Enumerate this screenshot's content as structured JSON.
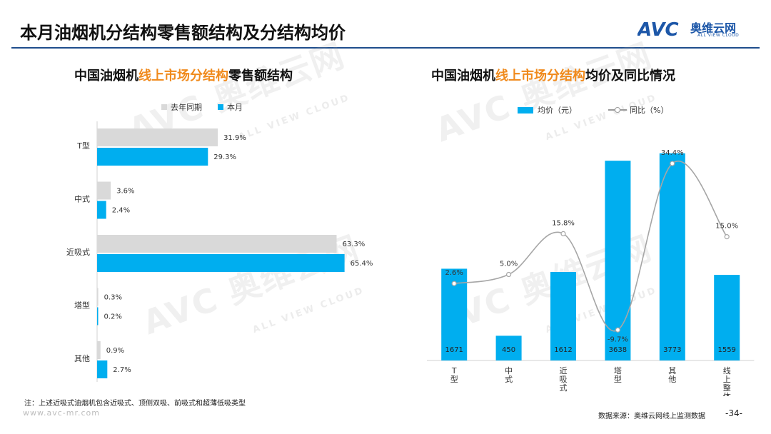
{
  "header": {
    "title": "本月油烟机分结构零售额结构及分结构均价",
    "logo_cn": "奥维云网",
    "logo_en": "ALL VIEW CLOUD"
  },
  "watermark": {
    "brand": "AVC 奥维云网",
    "sub": "ALL VIEW CLOUD"
  },
  "colors": {
    "current": "#00aeef",
    "last_year": "#d9d9d9",
    "line": "#a6a6a6",
    "highlight": "#f08a1c",
    "rule": "#1f4e8c"
  },
  "left_chart": {
    "title_prefix": "中国油烟机",
    "title_highlight": "线上市场分结构",
    "title_suffix": "零售额结构",
    "legend": {
      "last_year": "去年同期",
      "current": "本月"
    }
  },
  "right_chart": {
    "title_prefix": "中国油烟机",
    "title_highlight": "线上市场分结构",
    "title_suffix": "均价及同比情况",
    "legend": {
      "bar": "均价（元）",
      "line": "同比（%）"
    }
  },
  "chart_data": [
    {
      "type": "bar",
      "orientation": "horizontal",
      "title": "中国油烟机线上市场分结构零售额结构",
      "categories": [
        "T型",
        "中式",
        "近吸式",
        "塔型",
        "其他"
      ],
      "series": [
        {
          "name": "去年同期",
          "values": [
            31.9,
            3.6,
            63.3,
            0.3,
            0.9
          ],
          "labels": [
            "31.9%",
            "3.6%",
            "63.3%",
            "0.3%",
            "0.9%"
          ]
        },
        {
          "name": "本月",
          "values": [
            29.3,
            2.4,
            65.4,
            0.2,
            2.7
          ],
          "labels": [
            "29.3%",
            "2.4%",
            "65.4%",
            "0.2%",
            "2.7%"
          ]
        }
      ],
      "xlim": [
        0,
        70
      ],
      "grid": false,
      "legend_position": "top"
    },
    {
      "type": "bar",
      "secondary_type": "line",
      "title": "中国油烟机线上市场分结构均价及同比情况",
      "categories": [
        "T型",
        "中式",
        "近吸式",
        "塔型",
        "其他",
        "线上整体"
      ],
      "series": [
        {
          "name": "均价（元）",
          "type": "bar",
          "values": [
            1671,
            450,
            1612,
            3638,
            3773,
            1559
          ],
          "labels": [
            "1671",
            "450",
            "1612",
            "3638",
            "3773",
            "1559"
          ]
        },
        {
          "name": "同比（%）",
          "type": "line",
          "values": [
            2.6,
            5.0,
            15.8,
            -9.7,
            34.4,
            15.0
          ],
          "labels": [
            "2.6%",
            "5.0%",
            "15.8%",
            "-9.7%",
            "34.4%",
            "15.0%"
          ]
        }
      ],
      "ylim": [
        0,
        3900
      ],
      "y2lim": [
        -14,
        38
      ],
      "grid": false,
      "legend_position": "top"
    }
  ],
  "footer": {
    "note": "注：上述近吸式油烟机包含近吸式、顶侧双吸、前吸式和超薄低吸类型",
    "url": "www.avc-mr.com",
    "source": "数据来源：奥维云网线上监测数据",
    "page": "-34-"
  }
}
